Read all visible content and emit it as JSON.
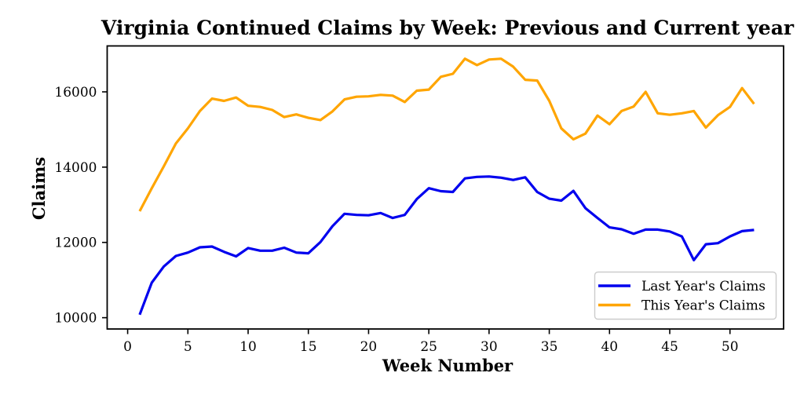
{
  "title": "Virginia Continued Claims by Week: Previous and Current year",
  "chart_data": {
    "type": "line",
    "title": "Virginia Continued Claims by Week: Previous and Current year",
    "xlabel": "Week Number",
    "ylabel": "Claims",
    "grid": false,
    "background_color": "#ffffff",
    "frame_color": "#000000",
    "xlim": [
      -1.7,
      54.45
    ],
    "ylim": [
      9700,
      17220
    ],
    "xticks": [
      0,
      5,
      10,
      15,
      20,
      25,
      30,
      35,
      40,
      45,
      50
    ],
    "yticks": [
      10000,
      12000,
      14000,
      16000
    ],
    "x": [
      1,
      2,
      3,
      4,
      5,
      6,
      7,
      8,
      9,
      10,
      11,
      12,
      13,
      14,
      15,
      16,
      17,
      18,
      19,
      20,
      21,
      22,
      23,
      24,
      25,
      26,
      27,
      28,
      29,
      30,
      31,
      32,
      33,
      34,
      35,
      36,
      37,
      38,
      39,
      40,
      41,
      42,
      43,
      44,
      45,
      46,
      47,
      48,
      49,
      50,
      51,
      52
    ],
    "series": [
      {
        "name": "Last Year's Claims",
        "color": "#0000ee",
        "values": [
          10080,
          10930,
          11360,
          11640,
          11730,
          11870,
          11890,
          11750,
          11630,
          11850,
          11780,
          11780,
          11860,
          11730,
          11710,
          12010,
          12430,
          12760,
          12730,
          12720,
          12780,
          12650,
          12730,
          13150,
          13440,
          13360,
          13340,
          13700,
          13740,
          13750,
          13720,
          13660,
          13730,
          13340,
          13160,
          13110,
          13370,
          12910,
          12650,
          12400,
          12350,
          12230,
          12340,
          12340,
          12290,
          12160,
          11530,
          11950,
          11980,
          12160,
          12300,
          12330
        ]
      },
      {
        "name": "This Year's Claims",
        "color": "#ffa500",
        "values": [
          12830,
          13440,
          14020,
          14630,
          15030,
          15490,
          15820,
          15760,
          15850,
          15630,
          15600,
          15520,
          15330,
          15400,
          15310,
          15250,
          15480,
          15800,
          15870,
          15880,
          15920,
          15900,
          15730,
          16030,
          16060,
          16400,
          16480,
          16880,
          16710,
          16860,
          16880,
          16670,
          16320,
          16300,
          15760,
          15030,
          14740,
          14890,
          15370,
          15140,
          15490,
          15610,
          16000,
          15430,
          15390,
          15430,
          15490,
          15050,
          15380,
          15600,
          16100,
          15680
        ]
      }
    ],
    "legend": {
      "position": "lower right",
      "border_color": "#cccccc",
      "entries": [
        "Last Year's Claims",
        "This Year's Claims"
      ]
    }
  }
}
